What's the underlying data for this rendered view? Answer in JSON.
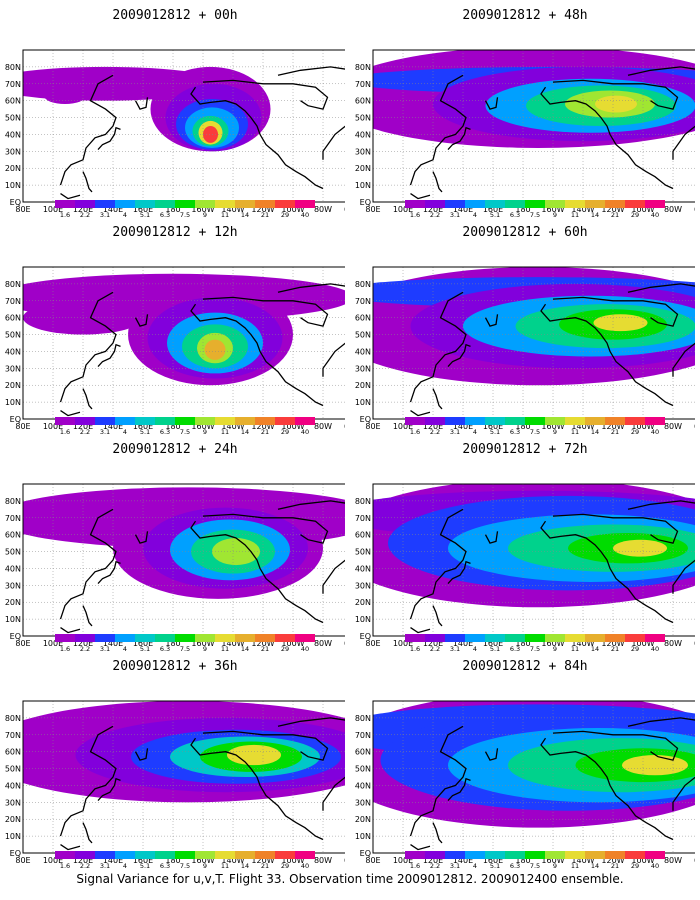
{
  "panels": [
    {
      "title": "2009012812 + 00h",
      "hour": 0
    },
    {
      "title": "2009012812 + 48h",
      "hour": 48
    },
    {
      "title": "2009012812 + 12h",
      "hour": 12
    },
    {
      "title": "2009012812 + 60h",
      "hour": 60
    },
    {
      "title": "2009012812 + 24h",
      "hour": 24
    },
    {
      "title": "2009012812 + 72h",
      "hour": 72
    },
    {
      "title": "2009012812 + 36h",
      "hour": 36
    },
    {
      "title": "2009012812 + 84h",
      "hour": 84
    }
  ],
  "x_tick_labels": [
    "80E",
    "100E",
    "120E",
    "140E",
    "160E",
    "180",
    "160W",
    "140W",
    "120W",
    "100W",
    "80W",
    "60W"
  ],
  "y_tick_labels": [
    "EQ",
    "10N",
    "20N",
    "30N",
    "40N",
    "50N",
    "60N",
    "70N",
    "80N"
  ],
  "colorbar": {
    "levels": [
      "1.6",
      "2.2",
      "3.1",
      "4",
      "5.1",
      "6.3",
      "7.5",
      "9",
      "11",
      "14",
      "21",
      "29",
      "40"
    ],
    "colors": [
      "#a000c8",
      "#8200dc",
      "#1e3cff",
      "#00a0ff",
      "#00c8c8",
      "#00d28c",
      "#00dc00",
      "#a0e632",
      "#e6dc32",
      "#e6af2d",
      "#f08228",
      "#fa3c3c",
      "#f00082"
    ]
  },
  "footer_text": "Signal Variance for u,v,T. Flight 33. Observation time 2009012812. 2009012400 ensemble."
}
